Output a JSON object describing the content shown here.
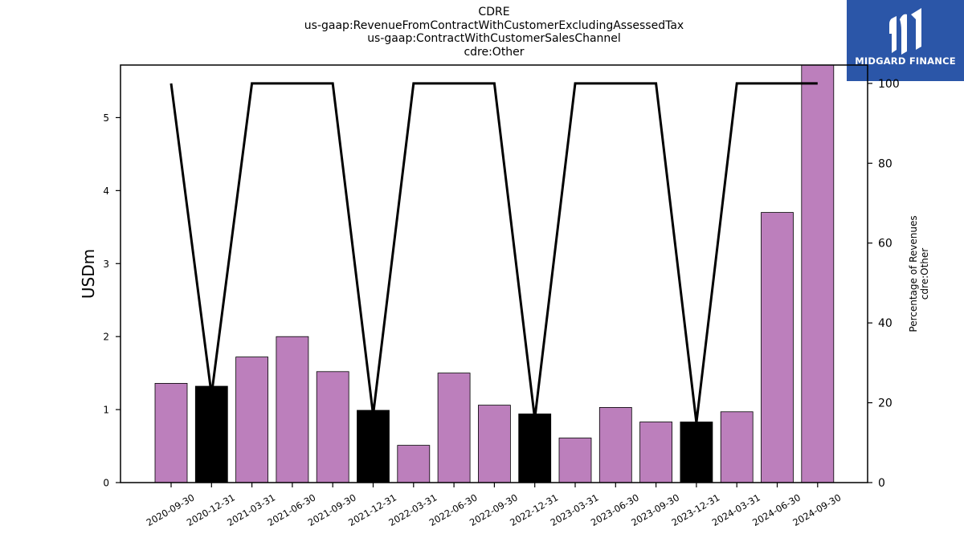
{
  "chart_data": {
    "type": "bar",
    "title_lines": [
      "CDRE",
      "us-gaap:RevenueFromContractWithCustomerExcludingAssessedTax",
      "us-gaap:ContractWithCustomerSalesChannel",
      "cdre:Other"
    ],
    "ylabel": "USDm",
    "ylabel_right_lines": [
      "Percentage of Revenues",
      "cdre:Other"
    ],
    "categories": [
      "2020-09-30",
      "2020-12-31",
      "2021-03-31",
      "2021-06-30",
      "2021-09-30",
      "2021-12-31",
      "2022-03-31",
      "2022-06-30",
      "2022-09-30",
      "2022-12-31",
      "2023-03-31",
      "2023-06-30",
      "2023-09-30",
      "2023-12-31",
      "2024-03-31",
      "2024-06-30",
      "2024-09-30"
    ],
    "series": [
      {
        "type": "bar",
        "values": [
          1.36,
          1.32,
          1.72,
          2.0,
          1.52,
          0.99,
          0.51,
          1.5,
          1.06,
          0.94,
          0.61,
          1.03,
          0.83,
          0.83,
          0.97,
          3.7,
          5.72
        ],
        "bar_colors": [
          "#bc7fbc",
          "#000000",
          "#bc7fbc",
          "#bc7fbc",
          "#bc7fbc",
          "#000000",
          "#bc7fbc",
          "#bc7fbc",
          "#bc7fbc",
          "#000000",
          "#bc7fbc",
          "#bc7fbc",
          "#bc7fbc",
          "#000000",
          "#bc7fbc",
          "#bc7fbc",
          "#bc7fbc"
        ]
      },
      {
        "type": "line",
        "axis": "right",
        "color": "#000000",
        "values": [
          100,
          22,
          100,
          100,
          100,
          17,
          100,
          100,
          100,
          16,
          100,
          100,
          100,
          15,
          100,
          100,
          100
        ]
      }
    ],
    "ylim": [
      0,
      5.72
    ],
    "yticks": [
      0,
      1,
      2,
      3,
      4,
      5
    ],
    "ylim_right": [
      0,
      104.6
    ],
    "yticks_right": [
      0,
      20,
      40,
      60,
      80,
      100
    ],
    "grid": false
  },
  "logo": {
    "text": "MIDGARD FINANCE"
  }
}
